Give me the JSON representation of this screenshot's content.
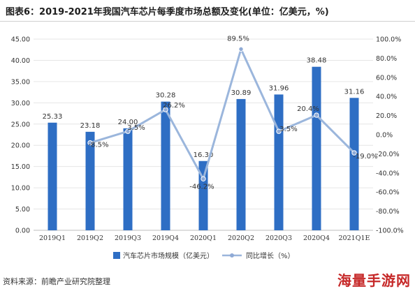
{
  "title": "图表6：2019-2021年我国汽车芯片每季度市场总额及变化(单位：亿美元，%)",
  "source_text": "资料来源：前瞻产业研究院整理",
  "watermark_logo": "海量手游网",
  "colors": {
    "bar": "#2e6ec4",
    "line": "#9bb6dc",
    "marker": "#8faad6",
    "grid": "#e6e6e6",
    "text": "#333333"
  },
  "chart_data": {
    "type": "bar",
    "categories": [
      "2019Q1",
      "2019Q2",
      "2019Q3",
      "2019Q4",
      "2020Q1",
      "2020Q2",
      "2020Q3",
      "2020Q4",
      "2021Q1E"
    ],
    "series": [
      {
        "name": "汽车芯片市场规模（亿美元）",
        "type": "bar",
        "axis": "left",
        "values": [
          25.33,
          23.18,
          24.0,
          30.28,
          16.3,
          30.89,
          31.96,
          38.48,
          31.16
        ],
        "labels": [
          "25.33",
          "23.18",
          "24.00",
          "30.28",
          "16.30",
          "30.89",
          "31.96",
          "38.48",
          "31.16"
        ]
      },
      {
        "name": "同比增长（%）",
        "type": "line",
        "axis": "right",
        "values": [
          null,
          -8.5,
          3.5,
          26.2,
          -46.2,
          89.5,
          3.5,
          20.4,
          -19.0
        ],
        "labels": [
          "",
          "-8.5%",
          "3.5%",
          "26.2%",
          "-46.2%",
          "89.5%",
          "3.5%",
          "20.4%",
          "-19.0%"
        ]
      }
    ],
    "y_left": {
      "min": 0,
      "max": 45,
      "ticks": [
        0,
        5,
        10,
        15,
        20,
        25,
        30,
        35,
        40,
        45
      ],
      "tick_labels": [
        "0.00",
        "5.00",
        "10.00",
        "15.00",
        "20.00",
        "25.00",
        "30.00",
        "35.00",
        "40.00",
        "45.00"
      ]
    },
    "y_right": {
      "min": -100,
      "max": 100,
      "ticks": [
        -100,
        -80,
        -60,
        -40,
        -20,
        0,
        20,
        40,
        60,
        80,
        100
      ],
      "tick_labels": [
        "-100.0%",
        "-80.0%",
        "-60.0%",
        "-40.0%",
        "-20.0%",
        "0.0%",
        "20.0%",
        "40.0%",
        "60.0%",
        "80.0%",
        "100.0%"
      ]
    },
    "grid": true,
    "legend_position": "bottom"
  }
}
